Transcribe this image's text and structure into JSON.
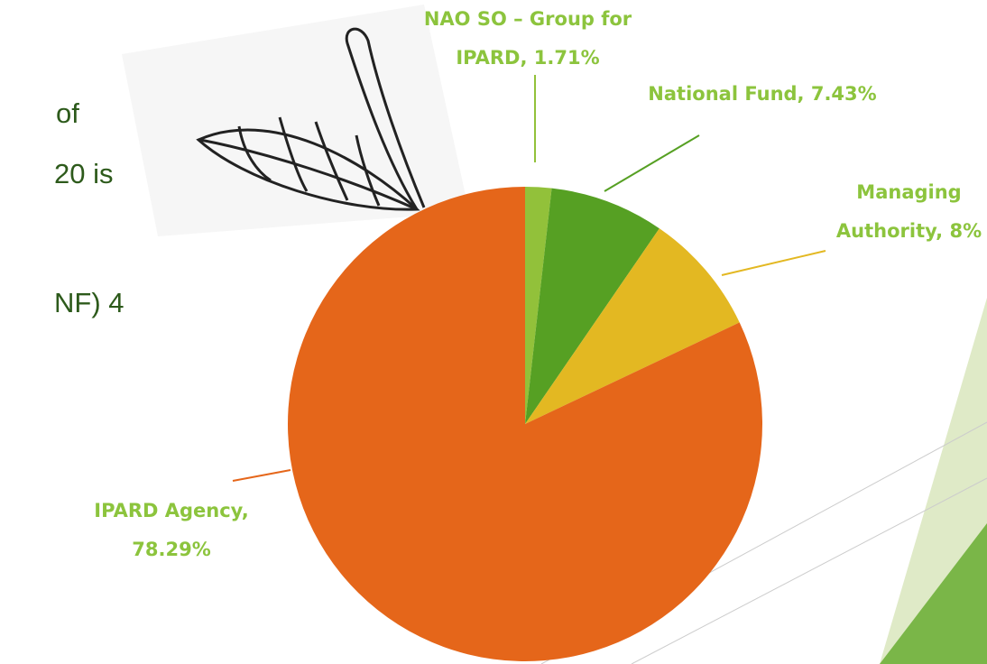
{
  "chart_data": {
    "type": "pie",
    "categories": [
      "NAO SO – Group for IPARD,",
      "National Fund,",
      "Managing Authority,",
      "IPARD Agency,"
    ],
    "values": [
      1.71,
      7.43,
      8,
      78.29
    ],
    "value_labels": [
      "1.71%",
      "7.43%",
      "8%",
      "78.29%"
    ],
    "colors": [
      "#92c13a",
      "#56a023",
      "#e3b822",
      "#e5661a"
    ],
    "label_color": "#8cc43d"
  },
  "text_fragments": [
    "of",
    "20 is",
    "NF) 4"
  ]
}
